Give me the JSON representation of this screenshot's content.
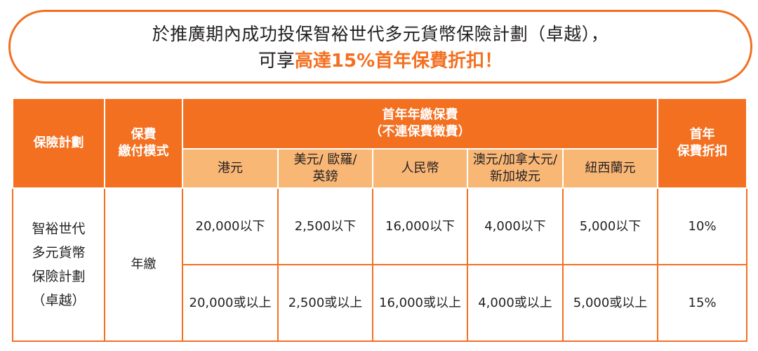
{
  "banner": {
    "line1": "於推廣期內成功投保智裕世代多元貨幣保險計劃（卓越），",
    "line2_prefix": "可享",
    "line2_highlight": "高達15%首年保費折扣！"
  },
  "colors": {
    "accent": "#f37021",
    "subheader": "#f9b776"
  },
  "table": {
    "headers": {
      "plan": "保險計劃",
      "payment_mode": "保費\n繳付模式",
      "premium_group": "首年年繳保費\n（不連保費徵費）",
      "discount": "首年\n保費折扣"
    },
    "currencies": [
      "港元",
      "美元/ 歐羅/\n英鎊",
      "人民幣",
      "澳元/加拿大元/\n新加坡元",
      "紐西蘭元"
    ],
    "plan_name": "智裕世代\n多元貨幣\n保險計劃\n（卓越）",
    "payment_mode": "年繳",
    "rows": [
      {
        "values": [
          "20,000以下",
          "2,500以下",
          "16,000以下",
          "4,000以下",
          "5,000以下"
        ],
        "discount": "10%"
      },
      {
        "values": [
          "20,000或以上",
          "2,500或以上",
          "16,000或以上",
          "4,000或以上",
          "5,000或以上"
        ],
        "discount": "15%"
      }
    ]
  }
}
